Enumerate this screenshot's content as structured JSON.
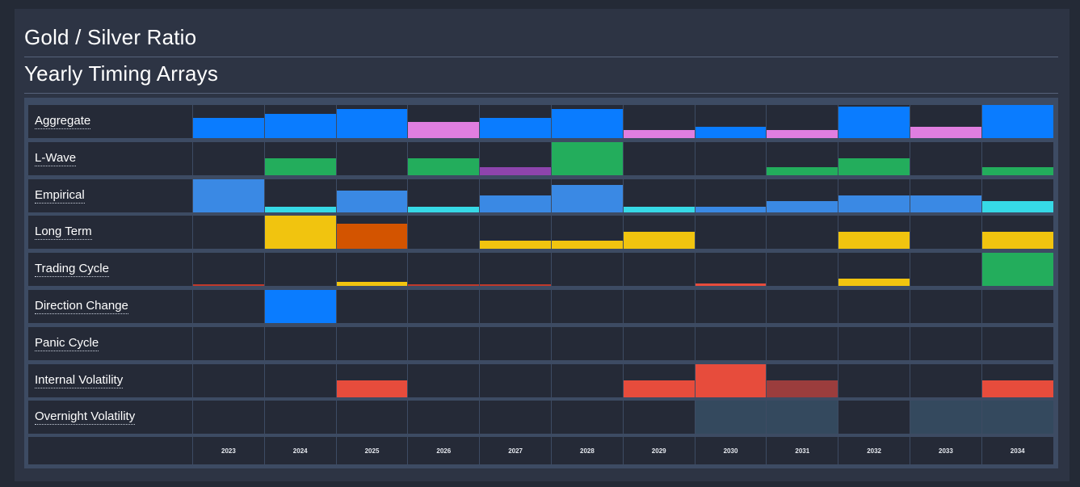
{
  "header": {
    "title": "Gold / Silver Ratio",
    "subtitle": "Yearly Timing Arrays"
  },
  "chart_data": {
    "type": "heatmap",
    "years": [
      "2023",
      "2024",
      "2025",
      "2026",
      "2027",
      "2028",
      "2029",
      "2030",
      "2031",
      "2032",
      "2033",
      "2034"
    ],
    "rows": [
      {
        "name": "Aggregate",
        "values": [
          {
            "v": 0.62,
            "c": "#0a7cff"
          },
          {
            "v": 0.72,
            "c": "#0a7cff"
          },
          {
            "v": 0.88,
            "c": "#0a7cff"
          },
          {
            "v": 0.48,
            "c": "#e07ee0"
          },
          {
            "v": 0.62,
            "c": "#0a7cff"
          },
          {
            "v": 0.88,
            "c": "#0a7cff"
          },
          {
            "v": 0.24,
            "c": "#e07ee0"
          },
          {
            "v": 0.33,
            "c": "#0a7cff"
          },
          {
            "v": 0.24,
            "c": "#e07ee0"
          },
          {
            "v": 0.95,
            "c": "#0a7cff"
          },
          {
            "v": 0.33,
            "c": "#e07ee0"
          },
          {
            "v": 1.0,
            "c": "#0a7cff"
          }
        ]
      },
      {
        "name": "L-Wave",
        "values": [
          {
            "v": 0,
            "c": ""
          },
          {
            "v": 0.5,
            "c": "#23ad5c"
          },
          {
            "v": 0,
            "c": ""
          },
          {
            "v": 0.5,
            "c": "#23ad5c"
          },
          {
            "v": 0.25,
            "c": "#8e44ad"
          },
          {
            "v": 1.0,
            "c": "#23ad5c"
          },
          {
            "v": 0,
            "c": ""
          },
          {
            "v": 0,
            "c": ""
          },
          {
            "v": 0.25,
            "c": "#23ad5c"
          },
          {
            "v": 0.5,
            "c": "#23ad5c"
          },
          {
            "v": 0,
            "c": ""
          },
          {
            "v": 0.25,
            "c": "#23ad5c"
          }
        ]
      },
      {
        "name": "Empirical",
        "values": [
          {
            "v": 1.0,
            "c": "#3a89e4"
          },
          {
            "v": 0.17,
            "c": "#36d9e6"
          },
          {
            "v": 0.67,
            "c": "#3a89e4"
          },
          {
            "v": 0.17,
            "c": "#36d9e6"
          },
          {
            "v": 0.5,
            "c": "#3a89e4"
          },
          {
            "v": 0.83,
            "c": "#3a89e4"
          },
          {
            "v": 0.17,
            "c": "#36d9e6"
          },
          {
            "v": 0.17,
            "c": "#3a89e4"
          },
          {
            "v": 0.33,
            "c": "#3a89e4"
          },
          {
            "v": 0.5,
            "c": "#3a89e4"
          },
          {
            "v": 0.5,
            "c": "#3a89e4"
          },
          {
            "v": 0.33,
            "c": "#36d9e6"
          }
        ]
      },
      {
        "name": "Long Term",
        "values": [
          {
            "v": 0,
            "c": ""
          },
          {
            "v": 1.0,
            "c": "#f1c40f"
          },
          {
            "v": 0.75,
            "c": "#d35400"
          },
          {
            "v": 0,
            "c": ""
          },
          {
            "v": 0.25,
            "c": "#f1c40f"
          },
          {
            "v": 0.25,
            "c": "#f1c40f"
          },
          {
            "v": 0.5,
            "c": "#f1c40f"
          },
          {
            "v": 0,
            "c": ""
          },
          {
            "v": 0,
            "c": ""
          },
          {
            "v": 0.5,
            "c": "#f1c40f"
          },
          {
            "v": 0,
            "c": ""
          },
          {
            "v": 0.5,
            "c": "#f1c40f"
          }
        ]
      },
      {
        "name": "Trading Cycle",
        "values": [
          {
            "v": 0.05,
            "c": "#c0392b"
          },
          {
            "v": 0,
            "c": ""
          },
          {
            "v": 0.12,
            "c": "#f1c40f"
          },
          {
            "v": 0.05,
            "c": "#c0392b"
          },
          {
            "v": 0.05,
            "c": "#c0392b"
          },
          {
            "v": 0,
            "c": ""
          },
          {
            "v": 0,
            "c": ""
          },
          {
            "v": 0.08,
            "c": "#e74c3c"
          },
          {
            "v": 0,
            "c": ""
          },
          {
            "v": 0.22,
            "c": "#f1c40f"
          },
          {
            "v": 0,
            "c": ""
          },
          {
            "v": 1.0,
            "c": "#23ad5c"
          }
        ]
      },
      {
        "name": "Direction Change",
        "values": [
          {
            "v": 0,
            "c": ""
          },
          {
            "v": 1.0,
            "c": "#0a7cff"
          },
          {
            "v": 0,
            "c": ""
          },
          {
            "v": 0,
            "c": ""
          },
          {
            "v": 0,
            "c": ""
          },
          {
            "v": 0,
            "c": ""
          },
          {
            "v": 0,
            "c": ""
          },
          {
            "v": 0,
            "c": ""
          },
          {
            "v": 0,
            "c": ""
          },
          {
            "v": 0,
            "c": ""
          },
          {
            "v": 0,
            "c": ""
          },
          {
            "v": 0,
            "c": ""
          }
        ]
      },
      {
        "name": "Panic Cycle",
        "values": [
          {
            "v": 0,
            "c": ""
          },
          {
            "v": 0,
            "c": ""
          },
          {
            "v": 0,
            "c": ""
          },
          {
            "v": 0,
            "c": ""
          },
          {
            "v": 0,
            "c": ""
          },
          {
            "v": 0,
            "c": ""
          },
          {
            "v": 0,
            "c": ""
          },
          {
            "v": 0,
            "c": ""
          },
          {
            "v": 0,
            "c": ""
          },
          {
            "v": 0,
            "c": ""
          },
          {
            "v": 0,
            "c": ""
          },
          {
            "v": 0,
            "c": ""
          }
        ]
      },
      {
        "name": "Internal Volatility",
        "values": [
          {
            "v": 0,
            "c": ""
          },
          {
            "v": 0,
            "c": ""
          },
          {
            "v": 0.5,
            "c": "#e74c3c"
          },
          {
            "v": 0,
            "c": ""
          },
          {
            "v": 0,
            "c": ""
          },
          {
            "v": 0,
            "c": ""
          },
          {
            "v": 0.5,
            "c": "#e74c3c"
          },
          {
            "v": 1.0,
            "c": "#e74c3c"
          },
          {
            "v": 0.5,
            "c": "#9b3d3d"
          },
          {
            "v": 0,
            "c": ""
          },
          {
            "v": 0,
            "c": ""
          },
          {
            "v": 0.5,
            "c": "#e74c3c"
          }
        ]
      },
      {
        "name": "Overnight Volatility",
        "values": [
          {
            "v": 0,
            "c": ""
          },
          {
            "v": 0,
            "c": ""
          },
          {
            "v": 0,
            "c": ""
          },
          {
            "v": 0,
            "c": ""
          },
          {
            "v": 0,
            "c": ""
          },
          {
            "v": 0,
            "c": ""
          },
          {
            "v": 0,
            "c": ""
          },
          {
            "v": 1.0,
            "c": "#34495e"
          },
          {
            "v": 1.0,
            "c": "#34495e"
          },
          {
            "v": 0,
            "c": ""
          },
          {
            "v": 1.0,
            "c": "#34495e"
          },
          {
            "v": 1.0,
            "c": "#34495e"
          }
        ]
      }
    ]
  }
}
